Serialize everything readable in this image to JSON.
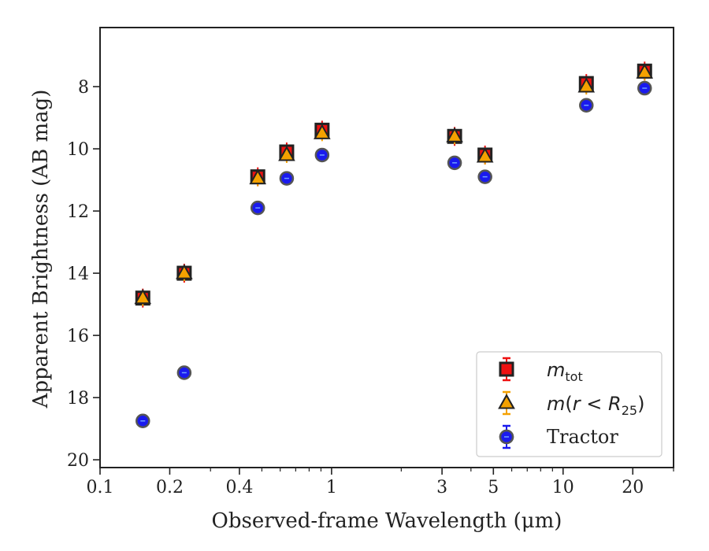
{
  "chart_data": {
    "type": "scatter",
    "title": "",
    "xlabel": "Observed-frame Wavelength (μm)",
    "ylabel": "Apparent Brightness (AB mag)",
    "xscale": "log",
    "xlim": [
      0.1,
      30
    ],
    "ylim": [
      20.25,
      6.1
    ],
    "y_inverted": true,
    "xticks": [
      {
        "value": 0.1,
        "label": "0.1"
      },
      {
        "value": 0.2,
        "label": "0.2"
      },
      {
        "value": 0.4,
        "label": "0.4"
      },
      {
        "value": 1,
        "label": "1"
      },
      {
        "value": 3,
        "label": "3"
      },
      {
        "value": 5,
        "label": "5"
      },
      {
        "value": 10,
        "label": "10"
      },
      {
        "value": 20,
        "label": "20"
      }
    ],
    "yticks": [
      {
        "value": 8,
        "label": "8"
      },
      {
        "value": 10,
        "label": "10"
      },
      {
        "value": 12,
        "label": "12"
      },
      {
        "value": 14,
        "label": "14"
      },
      {
        "value": 16,
        "label": "16"
      },
      {
        "value": 18,
        "label": "18"
      },
      {
        "value": 20,
        "label": "20"
      }
    ],
    "grid": false,
    "legend_position": "lower-right",
    "series": [
      {
        "name": "m_tot",
        "marker": "square",
        "color": "#ee1111",
        "edge_color": "#222222",
        "x": [
          0.153,
          0.231,
          0.48,
          0.64,
          0.91,
          3.4,
          4.6,
          12.6,
          22.5
        ],
        "y": [
          14.8,
          14.0,
          10.9,
          10.1,
          9.4,
          9.6,
          10.2,
          7.9,
          7.5
        ]
      },
      {
        "name": "m(r<R25)",
        "marker": "triangle",
        "color": "#f4a100",
        "edge_color": "#222222",
        "x": [
          0.153,
          0.231,
          0.48,
          0.64,
          0.91,
          3.4,
          4.6,
          12.6,
          22.5
        ],
        "y": [
          14.8,
          14.0,
          10.95,
          10.2,
          9.5,
          9.6,
          10.25,
          8.0,
          7.55
        ]
      },
      {
        "name": "Tractor",
        "marker": "circle",
        "color": "#1a1aee",
        "edge_color": "#555555",
        "x": [
          0.153,
          0.231,
          0.48,
          0.64,
          0.91,
          3.4,
          4.6,
          12.6,
          22.5
        ],
        "y": [
          18.75,
          17.2,
          11.9,
          10.95,
          10.2,
          10.45,
          10.9,
          8.6,
          8.05
        ]
      }
    ],
    "legend": [
      {
        "base": "m",
        "sub": "tot",
        "suffix": ""
      },
      {
        "base": "m",
        "sub": "",
        "suffix": "(r < R",
        "sub2": "25",
        "tail": ")"
      },
      {
        "base": "Tractor"
      }
    ]
  }
}
